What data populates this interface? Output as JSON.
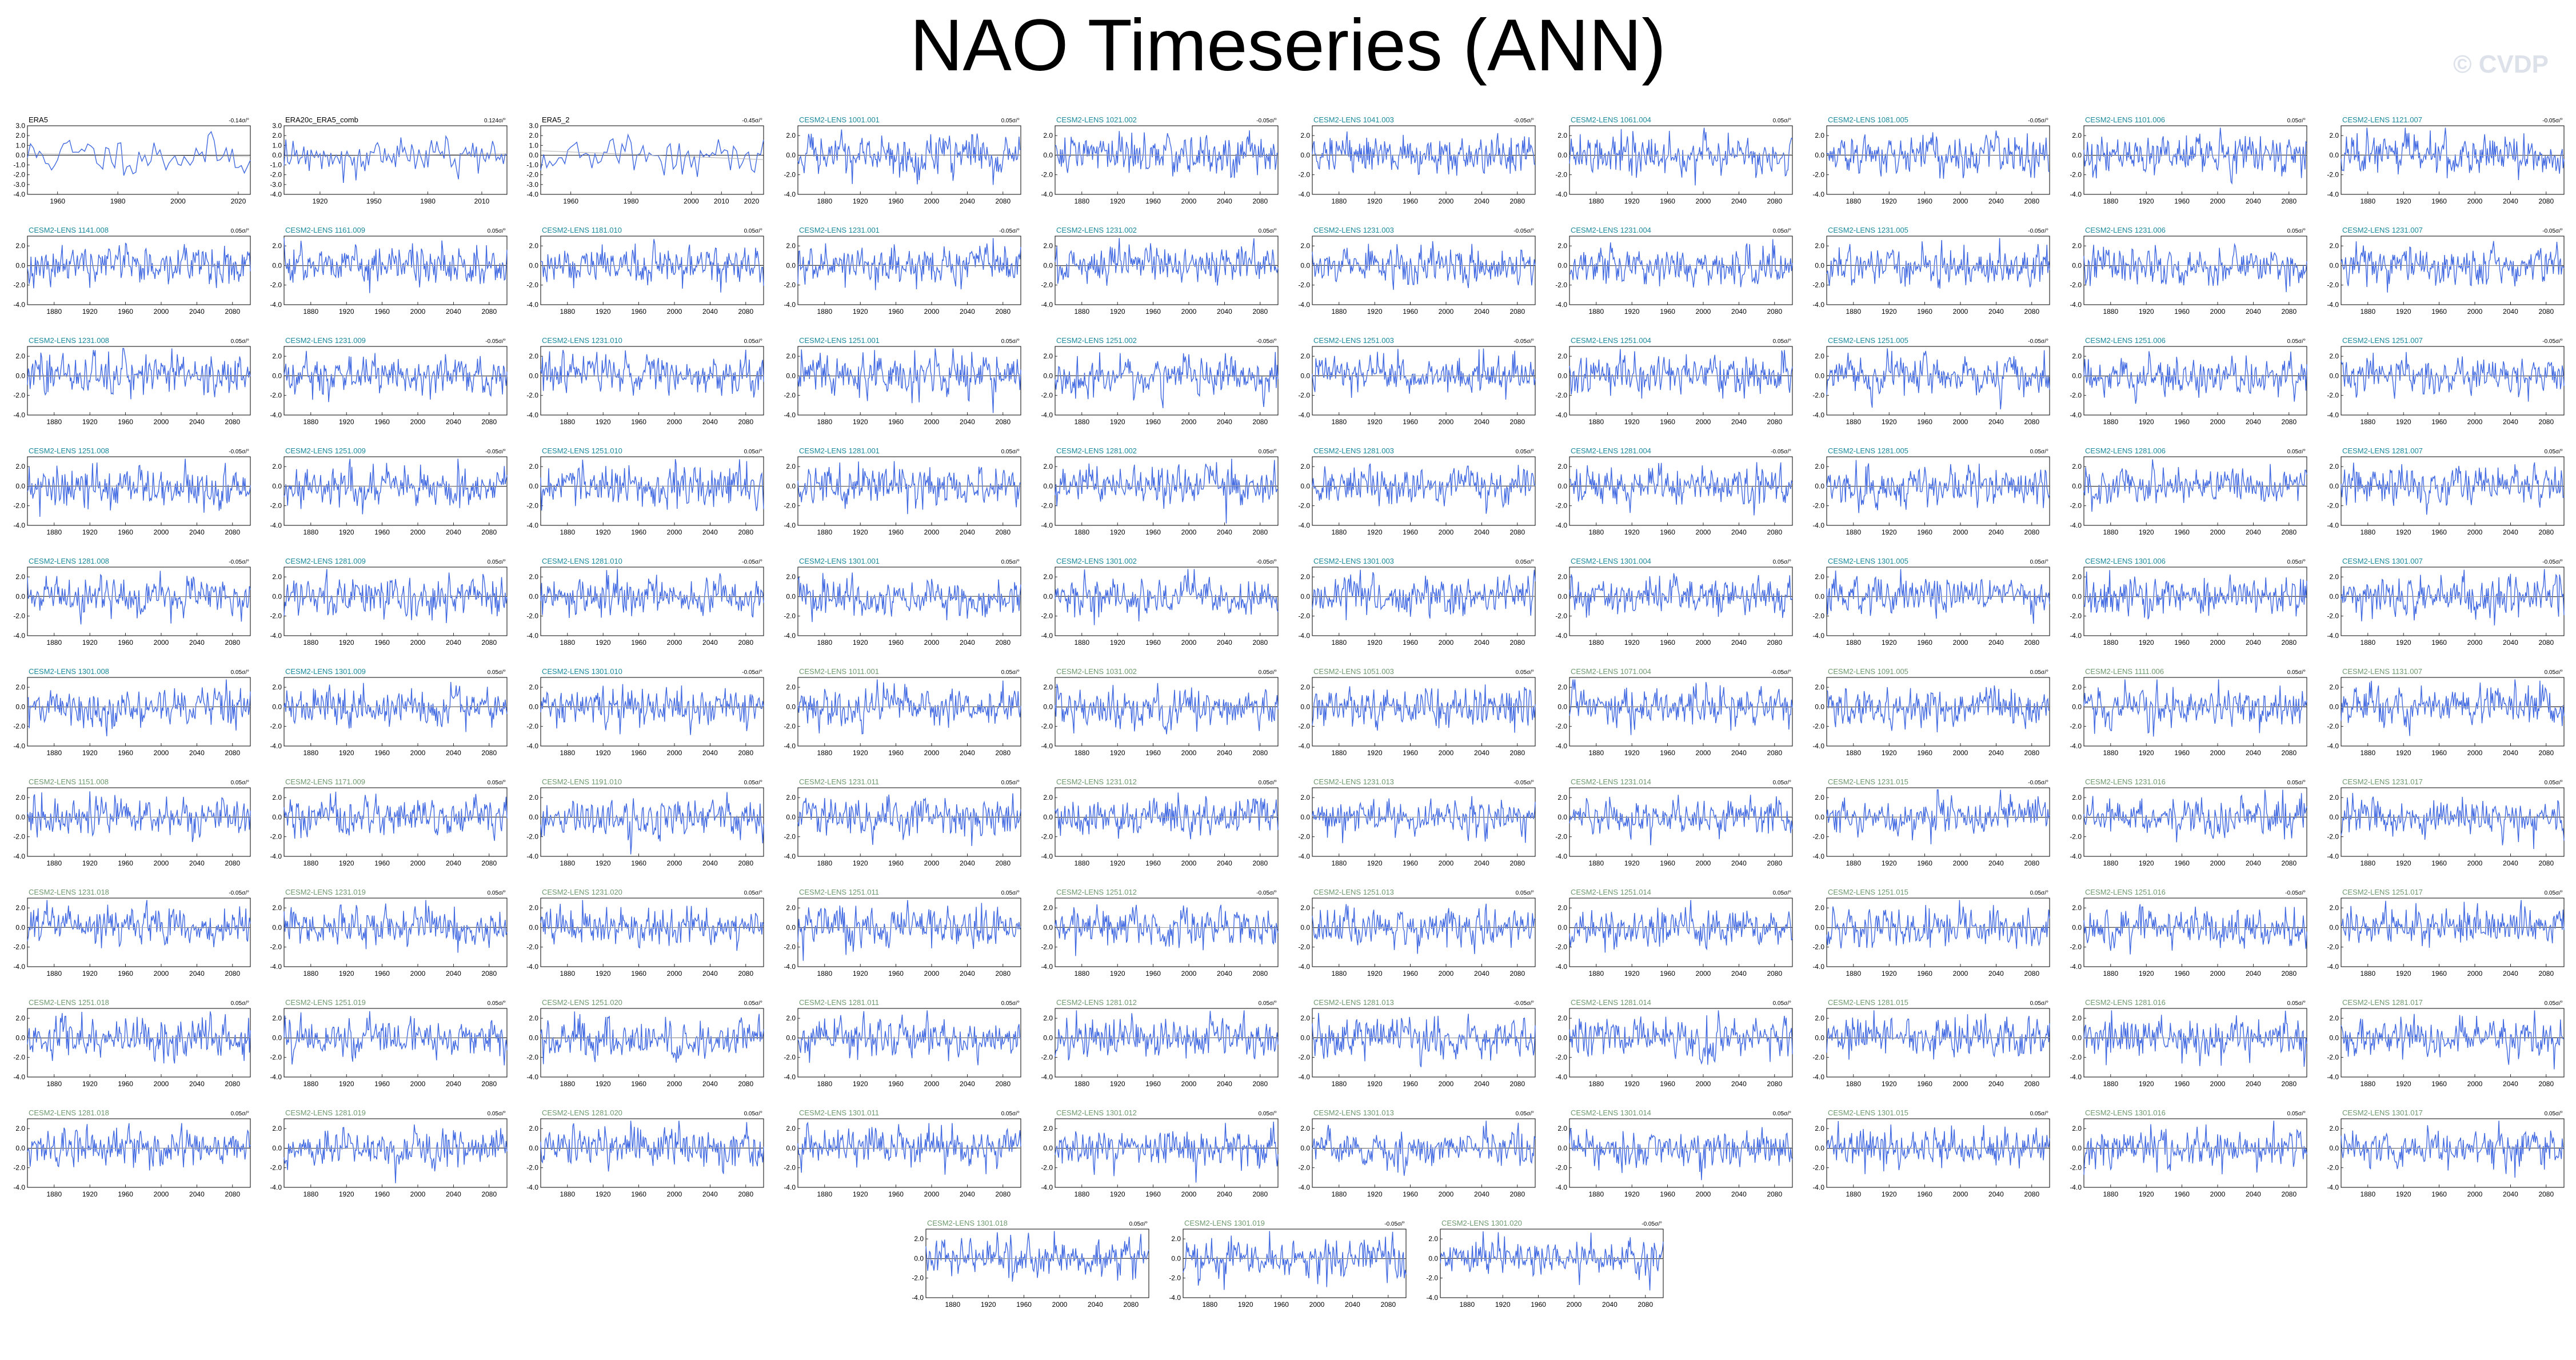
{
  "title": "NAO Timeseries (ANN)",
  "watermark": "© CVDP",
  "colors": {
    "series": "#4169e1",
    "trend": "#b0b0b0",
    "zero_line": "#000000",
    "title_observed": "#000000",
    "title_lens1": "#1b8a9c",
    "title_lens2": "#6f9a6f"
  },
  "chart_data": {
    "type": "line",
    "panel_layout": "10 columns x 10 rows + 3 centered in final row",
    "ylim": [
      -4.0,
      3.0
    ],
    "yticks": [
      "3.0",
      "2.0",
      "1.0",
      "0.0",
      "-1.0",
      "-2.0",
      "-3.0",
      "-4.0"
    ],
    "yticks_model": [
      "2.0",
      "0.0",
      "-2.0",
      "-4.0"
    ],
    "xticks_model": [
      "1880",
      "1920",
      "1960",
      "2000",
      "2040",
      "2080"
    ],
    "panels": [
      {
        "name": "ERA5",
        "stat": "-0.14σ/°",
        "group": "obs",
        "xlim": [
          1950,
          2024
        ],
        "xticks": [
          "1960",
          "1980",
          "2000",
          "2020"
        ],
        "seed": 11
      },
      {
        "name": "ERA20c_ERA5_comb",
        "stat": "0.124σ/°",
        "group": "obs",
        "xlim": [
          1900,
          2024
        ],
        "xticks": [
          "1920",
          "1950",
          "1980",
          "2010"
        ],
        "seed": 12
      },
      {
        "name": "ERA5_2",
        "stat": "-0.45σ/°",
        "group": "obs",
        "xlim": [
          1950,
          2024
        ],
        "xticks": [
          "1960",
          "1980",
          "2000",
          "2010",
          "2020"
        ],
        "seed": 13
      },
      {
        "name": "CESM2-LENS 1001.001",
        "stat": "0.05σ/°",
        "group": "lens1"
      },
      {
        "name": "CESM2-LENS 1021.002",
        "stat": "-0.05σ/°",
        "group": "lens1"
      },
      {
        "name": "CESM2-LENS 1041.003",
        "stat": "-0.05σ/°",
        "group": "lens1"
      },
      {
        "name": "CESM2-LENS 1061.004",
        "stat": "0.05σ/°",
        "group": "lens1"
      },
      {
        "name": "CESM2-LENS 1081.005",
        "stat": "-0.05σ/°",
        "group": "lens1"
      },
      {
        "name": "CESM2-LENS 1101.006",
        "stat": "0.05σ/°",
        "group": "lens1"
      },
      {
        "name": "CESM2-LENS 1121.007",
        "stat": "-0.05σ/°",
        "group": "lens1"
      },
      {
        "name": "CESM2-LENS 1141.008",
        "stat": "0.05σ/°",
        "group": "lens1"
      },
      {
        "name": "CESM2-LENS 1161.009",
        "stat": "0.05σ/°",
        "group": "lens1"
      },
      {
        "name": "CESM2-LENS 1181.010",
        "stat": "0.05σ/°",
        "group": "lens1"
      },
      {
        "name": "CESM2-LENS 1231.001",
        "stat": "-0.05σ/°",
        "group": "lens1"
      },
      {
        "name": "CESM2-LENS 1231.002",
        "stat": "0.05σ/°",
        "group": "lens1"
      },
      {
        "name": "CESM2-LENS 1231.003",
        "stat": "-0.05σ/°",
        "group": "lens1"
      },
      {
        "name": "CESM2-LENS 1231.004",
        "stat": "0.05σ/°",
        "group": "lens1"
      },
      {
        "name": "CESM2-LENS 1231.005",
        "stat": "-0.05σ/°",
        "group": "lens1"
      },
      {
        "name": "CESM2-LENS 1231.006",
        "stat": "0.05σ/°",
        "group": "lens1"
      },
      {
        "name": "CESM2-LENS 1231.007",
        "stat": "-0.05σ/°",
        "group": "lens1"
      },
      {
        "name": "CESM2-LENS 1231.008",
        "stat": "0.05σ/°",
        "group": "lens1"
      },
      {
        "name": "CESM2-LENS 1231.009",
        "stat": "-0.05σ/°",
        "group": "lens1"
      },
      {
        "name": "CESM2-LENS 1231.010",
        "stat": "0.05σ/°",
        "group": "lens1"
      },
      {
        "name": "CESM2-LENS 1251.001",
        "stat": "0.05σ/°",
        "group": "lens1"
      },
      {
        "name": "CESM2-LENS 1251.002",
        "stat": "-0.05σ/°",
        "group": "lens1"
      },
      {
        "name": "CESM2-LENS 1251.003",
        "stat": "-0.05σ/°",
        "group": "lens1"
      },
      {
        "name": "CESM2-LENS 1251.004",
        "stat": "0.05σ/°",
        "group": "lens1"
      },
      {
        "name": "CESM2-LENS 1251.005",
        "stat": "-0.05σ/°",
        "group": "lens1"
      },
      {
        "name": "CESM2-LENS 1251.006",
        "stat": "0.05σ/°",
        "group": "lens1"
      },
      {
        "name": "CESM2-LENS 1251.007",
        "stat": "-0.05σ/°",
        "group": "lens1"
      },
      {
        "name": "CESM2-LENS 1251.008",
        "stat": "-0.05σ/°",
        "group": "lens1"
      },
      {
        "name": "CESM2-LENS 1251.009",
        "stat": "-0.05σ/°",
        "group": "lens1"
      },
      {
        "name": "CESM2-LENS 1251.010",
        "stat": "0.05σ/°",
        "group": "lens1"
      },
      {
        "name": "CESM2-LENS 1281.001",
        "stat": "0.05σ/°",
        "group": "lens1"
      },
      {
        "name": "CESM2-LENS 1281.002",
        "stat": "0.05σ/°",
        "group": "lens1"
      },
      {
        "name": "CESM2-LENS 1281.003",
        "stat": "0.05σ/°",
        "group": "lens1"
      },
      {
        "name": "CESM2-LENS 1281.004",
        "stat": "-0.05σ/°",
        "group": "lens1"
      },
      {
        "name": "CESM2-LENS 1281.005",
        "stat": "0.05σ/°",
        "group": "lens1"
      },
      {
        "name": "CESM2-LENS 1281.006",
        "stat": "0.05σ/°",
        "group": "lens1"
      },
      {
        "name": "CESM2-LENS 1281.007",
        "stat": "0.05σ/°",
        "group": "lens1"
      },
      {
        "name": "CESM2-LENS 1281.008",
        "stat": "-0.05σ/°",
        "group": "lens1"
      },
      {
        "name": "CESM2-LENS 1281.009",
        "stat": "0.05σ/°",
        "group": "lens1"
      },
      {
        "name": "CESM2-LENS 1281.010",
        "stat": "-0.05σ/°",
        "group": "lens1"
      },
      {
        "name": "CESM2-LENS 1301.001",
        "stat": "0.05σ/°",
        "group": "lens1"
      },
      {
        "name": "CESM2-LENS 1301.002",
        "stat": "-0.05σ/°",
        "group": "lens1"
      },
      {
        "name": "CESM2-LENS 1301.003",
        "stat": "0.05σ/°",
        "group": "lens1"
      },
      {
        "name": "CESM2-LENS 1301.004",
        "stat": "0.05σ/°",
        "group": "lens1"
      },
      {
        "name": "CESM2-LENS 1301.005",
        "stat": "0.05σ/°",
        "group": "lens1"
      },
      {
        "name": "CESM2-LENS 1301.006",
        "stat": "0.05σ/°",
        "group": "lens1"
      },
      {
        "name": "CESM2-LENS 1301.007",
        "stat": "-0.05σ/°",
        "group": "lens1"
      },
      {
        "name": "CESM2-LENS 1301.008",
        "stat": "0.05σ/°",
        "group": "lens1"
      },
      {
        "name": "CESM2-LENS 1301.009",
        "stat": "0.05σ/°",
        "group": "lens1"
      },
      {
        "name": "CESM2-LENS 1301.010",
        "stat": "-0.05σ/°",
        "group": "lens1"
      },
      {
        "name": "CESM2-LENS 1011.001",
        "stat": "0.05σ/°",
        "group": "lens2"
      },
      {
        "name": "CESM2-LENS 1031.002",
        "stat": "0.05σ/°",
        "group": "lens2"
      },
      {
        "name": "CESM2-LENS 1051.003",
        "stat": "0.05σ/°",
        "group": "lens2"
      },
      {
        "name": "CESM2-LENS 1071.004",
        "stat": "-0.05σ/°",
        "group": "lens2"
      },
      {
        "name": "CESM2-LENS 1091.005",
        "stat": "0.05σ/°",
        "group": "lens2"
      },
      {
        "name": "CESM2-LENS 1111.006",
        "stat": "0.05σ/°",
        "group": "lens2"
      },
      {
        "name": "CESM2-LENS 1131.007",
        "stat": "0.05σ/°",
        "group": "lens2"
      },
      {
        "name": "CESM2-LENS 1151.008",
        "stat": "0.05σ/°",
        "group": "lens2"
      },
      {
        "name": "CESM2-LENS 1171.009",
        "stat": "0.05σ/°",
        "group": "lens2"
      },
      {
        "name": "CESM2-LENS 1191.010",
        "stat": "0.05σ/°",
        "group": "lens2"
      },
      {
        "name": "CESM2-LENS 1231.011",
        "stat": "0.05σ/°",
        "group": "lens2"
      },
      {
        "name": "CESM2-LENS 1231.012",
        "stat": "0.05σ/°",
        "group": "lens2"
      },
      {
        "name": "CESM2-LENS 1231.013",
        "stat": "-0.05σ/°",
        "group": "lens2"
      },
      {
        "name": "CESM2-LENS 1231.014",
        "stat": "0.05σ/°",
        "group": "lens2"
      },
      {
        "name": "CESM2-LENS 1231.015",
        "stat": "-0.05σ/°",
        "group": "lens2"
      },
      {
        "name": "CESM2-LENS 1231.016",
        "stat": "0.05σ/°",
        "group": "lens2"
      },
      {
        "name": "CESM2-LENS 1231.017",
        "stat": "0.05σ/°",
        "group": "lens2"
      },
      {
        "name": "CESM2-LENS 1231.018",
        "stat": "-0.05σ/°",
        "group": "lens2"
      },
      {
        "name": "CESM2-LENS 1231.019",
        "stat": "0.05σ/°",
        "group": "lens2"
      },
      {
        "name": "CESM2-LENS 1231.020",
        "stat": "0.05σ/°",
        "group": "lens2"
      },
      {
        "name": "CESM2-LENS 1251.011",
        "stat": "0.05σ/°",
        "group": "lens2"
      },
      {
        "name": "CESM2-LENS 1251.012",
        "stat": "-0.05σ/°",
        "group": "lens2"
      },
      {
        "name": "CESM2-LENS 1251.013",
        "stat": "0.05σ/°",
        "group": "lens2"
      },
      {
        "name": "CESM2-LENS 1251.014",
        "stat": "0.05σ/°",
        "group": "lens2"
      },
      {
        "name": "CESM2-LENS 1251.015",
        "stat": "0.05σ/°",
        "group": "lens2"
      },
      {
        "name": "CESM2-LENS 1251.016",
        "stat": "-0.05σ/°",
        "group": "lens2"
      },
      {
        "name": "CESM2-LENS 1251.017",
        "stat": "0.05σ/°",
        "group": "lens2"
      },
      {
        "name": "CESM2-LENS 1251.018",
        "stat": "0.05σ/°",
        "group": "lens2"
      },
      {
        "name": "CESM2-LENS 1251.019",
        "stat": "0.05σ/°",
        "group": "lens2"
      },
      {
        "name": "CESM2-LENS 1251.020",
        "stat": "0.05σ/°",
        "group": "lens2"
      },
      {
        "name": "CESM2-LENS 1281.011",
        "stat": "0.05σ/°",
        "group": "lens2"
      },
      {
        "name": "CESM2-LENS 1281.012",
        "stat": "0.05σ/°",
        "group": "lens2"
      },
      {
        "name": "CESM2-LENS 1281.013",
        "stat": "-0.05σ/°",
        "group": "lens2"
      },
      {
        "name": "CESM2-LENS 1281.014",
        "stat": "0.05σ/°",
        "group": "lens2"
      },
      {
        "name": "CESM2-LENS 1281.015",
        "stat": "0.05σ/°",
        "group": "lens2"
      },
      {
        "name": "CESM2-LENS 1281.016",
        "stat": "0.05σ/°",
        "group": "lens2"
      },
      {
        "name": "CESM2-LENS 1281.017",
        "stat": "0.05σ/°",
        "group": "lens2"
      },
      {
        "name": "CESM2-LENS 1281.018",
        "stat": "0.05σ/°",
        "group": "lens2"
      },
      {
        "name": "CESM2-LENS 1281.019",
        "stat": "0.05σ/°",
        "group": "lens2"
      },
      {
        "name": "CESM2-LENS 1281.020",
        "stat": "0.05σ/°",
        "group": "lens2"
      },
      {
        "name": "CESM2-LENS 1301.011",
        "stat": "0.05σ/°",
        "group": "lens2"
      },
      {
        "name": "CESM2-LENS 1301.012",
        "stat": "0.05σ/°",
        "group": "lens2"
      },
      {
        "name": "CESM2-LENS 1301.013",
        "stat": "0.05σ/°",
        "group": "lens2"
      },
      {
        "name": "CESM2-LENS 1301.014",
        "stat": "0.05σ/°",
        "group": "lens2"
      },
      {
        "name": "CESM2-LENS 1301.015",
        "stat": "0.05σ/°",
        "group": "lens2"
      },
      {
        "name": "CESM2-LENS 1301.016",
        "stat": "0.05σ/°",
        "group": "lens2"
      },
      {
        "name": "CESM2-LENS 1301.017",
        "stat": "0.05σ/°",
        "group": "lens2"
      },
      {
        "name": "CESM2-LENS 1301.018",
        "stat": "0.05σ/°",
        "group": "lens2"
      },
      {
        "name": "CESM2-LENS 1301.019",
        "stat": "-0.05σ/°",
        "group": "lens2"
      },
      {
        "name": "CESM2-LENS 1301.020",
        "stat": "-0.05σ/°",
        "group": "lens2"
      }
    ]
  }
}
